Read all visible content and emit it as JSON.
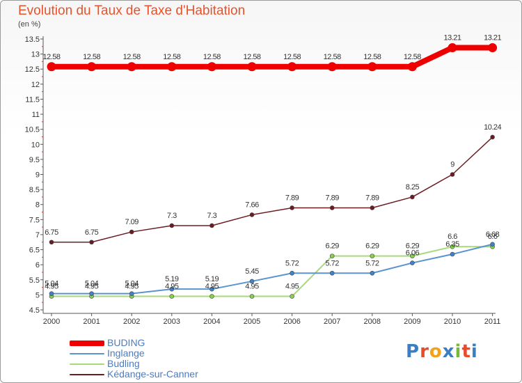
{
  "header": {
    "title": "Evolution du Taux de Taxe d'Habitation",
    "unit": "(en %)"
  },
  "logo": {
    "text": "Proxiti",
    "colors": [
      "#3a7fc4",
      "#e84b2a",
      "#f2a21b",
      "#3a7fc4",
      "#7ab83a",
      "#e84b2a",
      "#3a7fc4"
    ]
  },
  "chart_data": {
    "type": "line",
    "x": [
      "2000",
      "2001",
      "2002",
      "2003",
      "2004",
      "2005",
      "2006",
      "2007",
      "2008",
      "2009",
      "2010",
      "2011"
    ],
    "ylim": [
      4.5,
      13.5
    ],
    "yticks": [
      "4.5",
      "5",
      "5.5",
      "6",
      "6.5",
      "7",
      "7.5",
      "8",
      "8.5",
      "9",
      "9.5",
      "10",
      "10.5",
      "11",
      "11.5",
      "12",
      "12.5",
      "13",
      "13.5"
    ],
    "grid": false,
    "legend_position": "bottom-left",
    "series": [
      {
        "name": "BUDING",
        "color": "#ee0000",
        "width": 8,
        "values": [
          12.58,
          12.58,
          12.58,
          12.58,
          12.58,
          12.58,
          12.58,
          12.58,
          12.58,
          12.58,
          13.21,
          13.21
        ],
        "labels": [
          "12.58",
          "12.58",
          "12.58",
          "12.58",
          "12.58",
          "12.58",
          "12.58",
          "12.58",
          "12.58",
          "12.58",
          "13.21",
          "13.21"
        ]
      },
      {
        "name": "Inglange",
        "color": "#5b93cf",
        "width": 2,
        "values": [
          5.04,
          5.04,
          5.04,
          5.19,
          5.19,
          5.45,
          5.72,
          5.72,
          5.72,
          6.06,
          6.35,
          6.68
        ],
        "labels": [
          "5.04",
          "5.04",
          "5.04",
          "5.19",
          "5.19",
          "5.45",
          "5.72",
          "5.72",
          "5.72",
          "6.06",
          "6.35",
          "6.68"
        ]
      },
      {
        "name": "Budling",
        "color": "#a6d97a",
        "width": 2,
        "values": [
          4.95,
          4.95,
          4.95,
          4.95,
          4.95,
          4.95,
          4.95,
          6.29,
          6.29,
          6.29,
          6.6,
          6.6
        ],
        "labels": [
          "4.95",
          "4.95",
          "4.95",
          "4.95",
          "4.95",
          "4.95",
          "4.95",
          "6.29",
          "6.29",
          "6.29",
          "6.6",
          "6.6"
        ]
      },
      {
        "name": "Kédange-sur-Canner",
        "color": "#6b1c22",
        "width": 1.5,
        "values": [
          6.75,
          6.75,
          7.09,
          7.3,
          7.3,
          7.66,
          7.89,
          7.89,
          7.89,
          8.25,
          9,
          10.24
        ],
        "labels": [
          "6.75",
          "6.75",
          "7.09",
          "7.3",
          "7.3",
          "7.66",
          "7.89",
          "7.89",
          "7.89",
          "8.25",
          "9",
          "10.24"
        ]
      }
    ]
  }
}
